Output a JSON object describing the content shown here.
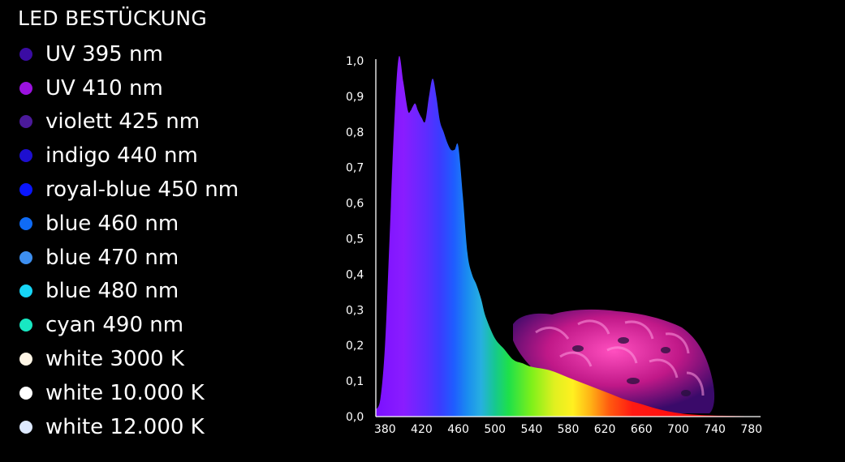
{
  "legend": {
    "title": "LED BESTÜCKUNG",
    "items": [
      {
        "label": "UV 395 nm",
        "color": "#3a0ca3"
      },
      {
        "label": "UV 410 nm",
        "color": "#9b12e0"
      },
      {
        "label": "violett 425 nm",
        "color": "#4b1a9a"
      },
      {
        "label": "indigo 440 nm",
        "color": "#1d0fd0"
      },
      {
        "label": "royal-blue 450 nm",
        "color": "#0a16ff"
      },
      {
        "label": "blue 460 nm",
        "color": "#0f6bf5"
      },
      {
        "label": "blue 470 nm",
        "color": "#3d8ff0"
      },
      {
        "label": "blue 480 nm",
        "color": "#17d6f7"
      },
      {
        "label": "cyan 490 nm",
        "color": "#18e8c2"
      },
      {
        "label": "white 3000 K",
        "color": "#fff6e6"
      },
      {
        "label": "white 10.000 K",
        "color": "#ffffff"
      },
      {
        "label": "white 12.000 K",
        "color": "#dde9ff"
      }
    ]
  },
  "chart_data": {
    "type": "area",
    "xlim": [
      370,
      790
    ],
    "ylim": [
      0,
      1
    ],
    "x_ticks": [
      380,
      420,
      460,
      500,
      540,
      580,
      620,
      660,
      700,
      740,
      780
    ],
    "x_tick_labels": [
      "380",
      "420",
      "460",
      "500",
      "540",
      "580",
      "620",
      "660",
      "700",
      "740",
      "780"
    ],
    "y_ticks": [
      0,
      0.1,
      0.2,
      0.3,
      0.4,
      0.5,
      0.6,
      0.7,
      0.8,
      0.9,
      1.0
    ],
    "y_tick_labels": [
      "0,0",
      "0,1",
      "0,2",
      "0,3",
      "0,4",
      "0,5",
      "0,6",
      "0,7",
      "0,8",
      "0,9",
      "1,0"
    ],
    "grid": false,
    "series": [
      {
        "x": [
          370,
          375,
          380,
          385,
          390,
          395,
          400,
          405,
          408,
          410,
          413,
          416,
          420,
          424,
          428,
          432,
          436,
          440,
          444,
          448,
          452,
          456,
          460,
          465,
          470,
          475,
          480,
          485,
          490,
          500,
          510,
          520,
          530,
          540,
          560,
          580,
          600,
          620,
          640,
          660,
          680,
          700,
          720,
          740,
          760,
          780
        ],
        "y": [
          0.02,
          0.05,
          0.2,
          0.5,
          0.82,
          1.01,
          0.94,
          0.86,
          0.86,
          0.87,
          0.88,
          0.86,
          0.84,
          0.83,
          0.9,
          0.95,
          0.9,
          0.83,
          0.8,
          0.77,
          0.75,
          0.75,
          0.76,
          0.62,
          0.46,
          0.4,
          0.37,
          0.33,
          0.28,
          0.22,
          0.19,
          0.16,
          0.15,
          0.14,
          0.13,
          0.11,
          0.09,
          0.07,
          0.05,
          0.035,
          0.02,
          0.01,
          0.005,
          0.003,
          0.002,
          0.001
        ]
      }
    ]
  }
}
